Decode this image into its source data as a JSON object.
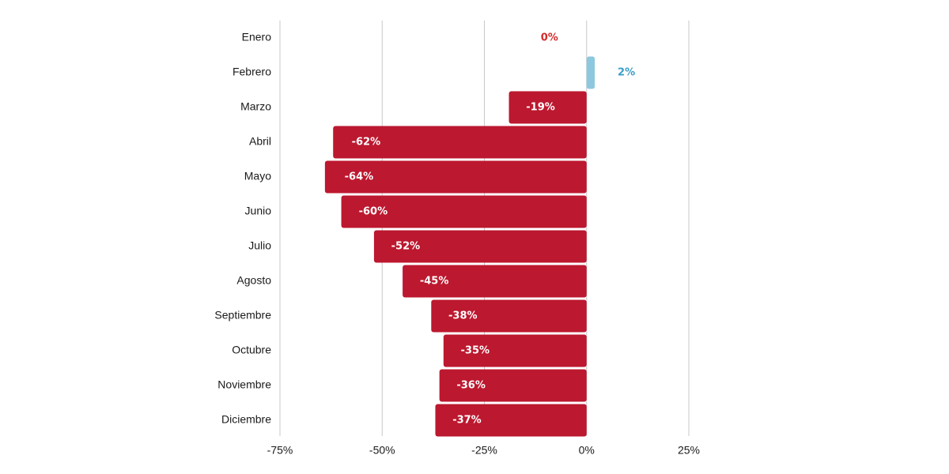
{
  "chart_data": {
    "type": "bar",
    "orientation": "horizontal",
    "categories": [
      "Enero",
      "Febrero",
      "Marzo",
      "Abril",
      "Mayo",
      "Junio",
      "Julio",
      "Agosto",
      "Septiembre",
      "Octubre",
      "Noviembre",
      "Diciembre"
    ],
    "values": [
      0,
      2,
      -19,
      -62,
      -64,
      -60,
      -52,
      -45,
      -38,
      -35,
      -36,
      -37
    ],
    "data_labels": [
      "0%",
      "2%",
      "-19%",
      "-62%",
      "-64%",
      "-60%",
      "-52%",
      "-45%",
      "-38%",
      "-35%",
      "-36%",
      "-37%"
    ],
    "xlim": [
      -75,
      25
    ],
    "xticks": [
      -75,
      -50,
      -25,
      0,
      25
    ],
    "xtick_labels": [
      "-75%",
      "-50%",
      "-25%",
      "0%",
      "25%"
    ],
    "grid": "vertical",
    "title": "",
    "xlabel": "",
    "ylabel": ""
  },
  "colors": {
    "negative": "#bc182f",
    "positive": "#8ec8df",
    "negative_label_outside": "#d42a2a",
    "positive_label_outside": "#3a9ec9",
    "label_inside": "#ffffff",
    "grid": "#c8c8c8"
  }
}
